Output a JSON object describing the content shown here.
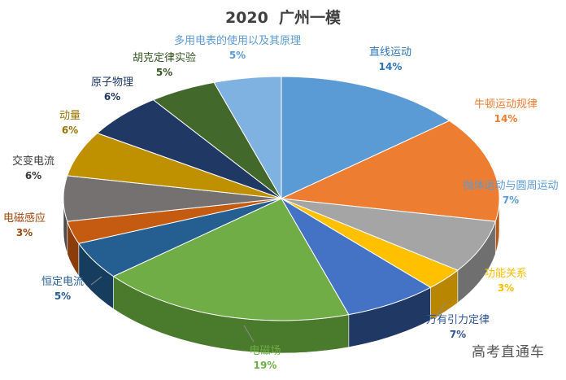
{
  "chart_data": {
    "type": "pie",
    "title": "2020  广州一模",
    "legend": "none",
    "slices": [
      {
        "name": "直线运动",
        "value": 14,
        "label": "14%",
        "color": "#5B9BD5",
        "dark": "#3A6E9F",
        "label_color": "#2E75B6"
      },
      {
        "name": "牛顿运动规律",
        "value": 14,
        "label": "14%",
        "color": "#ED7D31",
        "dark": "#B45A1E",
        "label_color": "#ED7D31"
      },
      {
        "name": "抛体运动与圆周运动",
        "value": 7,
        "label": "7%",
        "color": "#A5A5A5",
        "dark": "#6F6F6F",
        "label_color": "#5B9BD5"
      },
      {
        "name": "功能关系",
        "value": 3,
        "label": "3%",
        "color": "#FFC000",
        "dark": "#B88600",
        "label_color": "#FFC000"
      },
      {
        "name": "万有引力定律",
        "value": 7,
        "label": "7%",
        "color": "#4472C4",
        "dark": "#1F3864",
        "label_color": "#2F5597"
      },
      {
        "name": "电磁场",
        "value": 19,
        "label": "19%",
        "color": "#70AD47",
        "dark": "#4A7A2C",
        "label_color": "#70AD47"
      },
      {
        "name": "恒定电流",
        "value": 5,
        "label": "5%",
        "color": "#255E91",
        "dark": "#163C5E",
        "label_color": "#255E91"
      },
      {
        "name": "电磁感应",
        "value": 3,
        "label": "3%",
        "color": "#C55A11",
        "dark": "#8A3C0A",
        "label_color": "#9E480E"
      },
      {
        "name": "交变电流",
        "value": 6,
        "label": "6%",
        "color": "#767171",
        "dark": "#4D4949",
        "label_color": "#3B3838"
      },
      {
        "name": "动量",
        "value": 6,
        "label": "6%",
        "color": "#BF9000",
        "dark": "#7F6000",
        "label_color": "#997300"
      },
      {
        "name": "原子物理",
        "value": 6,
        "label": "6%",
        "color": "#203864",
        "dark": "#111E36",
        "label_color": "#203864"
      },
      {
        "name": "胡克定律实验",
        "value": 5,
        "label": "5%",
        "color": "#43682B",
        "dark": "#2B431B",
        "label_color": "#375623"
      },
      {
        "name": "多用电表的使用以及其原理",
        "value": 5,
        "label": "5%",
        "color": "#7FB2E0",
        "dark": "#5285B3",
        "label_color": "#5B9BD5"
      }
    ]
  },
  "watermark": "高考直通车"
}
